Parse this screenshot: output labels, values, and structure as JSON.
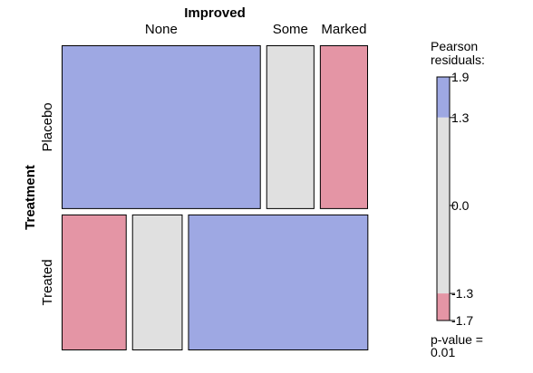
{
  "chart_data": {
    "type": "mosaic",
    "column_variable": "Improved",
    "row_variable": "Treatment",
    "columns": [
      "None",
      "Some",
      "Marked"
    ],
    "rows": [
      {
        "label": "Placebo",
        "cells": [
          {
            "column": "None",
            "proportion": 0.674,
            "fill": "#9EA8E3"
          },
          {
            "column": "Some",
            "proportion": 0.163,
            "fill": "#E0E0E0"
          },
          {
            "column": "Marked",
            "proportion": 0.163,
            "fill": "#E495A5"
          }
        ]
      },
      {
        "label": "Treated",
        "cells": [
          {
            "column": "None",
            "proportion": 0.22,
            "fill": "#E495A5"
          },
          {
            "column": "Some",
            "proportion": 0.171,
            "fill": "#E0E0E0"
          },
          {
            "column": "Marked",
            "proportion": 0.61,
            "fill": "#9EA8E3"
          }
        ]
      }
    ],
    "row_proportions": [
      0.5465,
      0.4535
    ],
    "legend": {
      "title_line1": "Pearson",
      "title_line2": "residuals:",
      "range": [
        -1.7,
        1.9
      ],
      "ticks": [
        "1.9",
        "1.3",
        "0.0",
        "-1.3",
        "-1.7"
      ],
      "tick_values": [
        1.9,
        1.3,
        0.0,
        -1.3,
        -1.7
      ],
      "bands": [
        {
          "from": 1.3,
          "to": 1.9,
          "fill": "#9EA8E3"
        },
        {
          "from": -1.3,
          "to": 1.3,
          "fill": "#E0E0E0"
        },
        {
          "from": -1.7,
          "to": -1.3,
          "fill": "#E495A5"
        }
      ]
    },
    "p_value_label": "p-value =",
    "p_value": "0.01"
  }
}
